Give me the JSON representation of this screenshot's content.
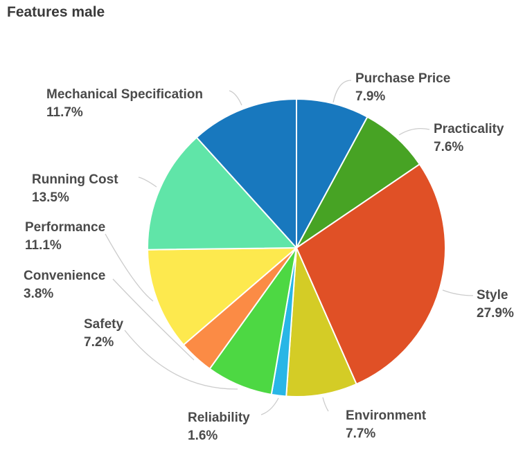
{
  "title": "Features male",
  "chart_data": {
    "type": "pie",
    "title": "Features male",
    "direction": "clockwise",
    "start_angle": "12-oclock",
    "background": "#ffffff",
    "label_color": "#4a4a4a",
    "leader_line_color": "#cccccc",
    "slice_border_color": "#ffffff",
    "slices": [
      {
        "label": "Purchase Price",
        "value": 7.9,
        "pct_label": "7.9%",
        "color": "#1878be"
      },
      {
        "label": "Practicality",
        "value": 7.6,
        "pct_label": "7.6%",
        "color": "#47a324"
      },
      {
        "label": "Style",
        "value": 27.9,
        "pct_label": "27.9%",
        "color": "#e05026"
      },
      {
        "label": "Environment",
        "value": 7.7,
        "pct_label": "7.7%",
        "color": "#d4cc26"
      },
      {
        "label": "Reliability",
        "value": 1.6,
        "pct_label": "1.6%",
        "color": "#29b6e6"
      },
      {
        "label": "Safety",
        "value": 7.2,
        "pct_label": "7.2%",
        "color": "#4dd843"
      },
      {
        "label": "Convenience",
        "value": 3.8,
        "pct_label": "3.8%",
        "color": "#fb8b45"
      },
      {
        "label": "Performance",
        "value": 11.1,
        "pct_label": "11.1%",
        "color": "#fde94e"
      },
      {
        "label": "Running Cost",
        "value": 13.5,
        "pct_label": "13.5%",
        "color": "#60e5a8"
      },
      {
        "label": "Mechanical Specification",
        "value": 11.7,
        "pct_label": "11.7%",
        "color": "#1878be"
      }
    ]
  }
}
